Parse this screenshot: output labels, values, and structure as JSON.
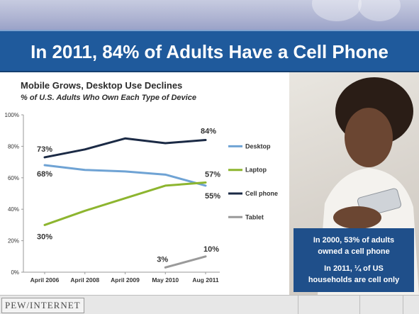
{
  "slide": {
    "title": "In 2011, 84% of Adults Have a Cell Phone",
    "caption_line1": "In 2000, 53% of adults",
    "caption_line2": "owned a cell phone",
    "caption_line3": "In 2011, ¼ of US",
    "caption_line4": "households are cell only",
    "footer_logo": "PEW/INTERNET",
    "colors": {
      "title_bar": "#1f5a9c",
      "caption_box": "#1f4f8a"
    }
  },
  "chart_data": {
    "type": "line",
    "title": "Mobile Grows, Desktop Use Declines",
    "subtitle": "% of U.S. Adults Who Own Each Type of Device",
    "categories": [
      "April 2006",
      "April 2008",
      "April 2009",
      "May 2010",
      "Aug 2011"
    ],
    "y_ticks": [
      "0%",
      "20%",
      "40%",
      "60%",
      "80%",
      "100%"
    ],
    "ylim": [
      0,
      100
    ],
    "grid": false,
    "legend_position": "right",
    "series": [
      {
        "name": "Desktop",
        "color": "#6fa3d4",
        "values": [
          68,
          65,
          64,
          62,
          55
        ]
      },
      {
        "name": "Laptop",
        "color": "#8db52f",
        "values": [
          30,
          39,
          47,
          55,
          57
        ]
      },
      {
        "name": "Cell phone",
        "color": "#1b2a45",
        "values": [
          73,
          78,
          85,
          82,
          84
        ]
      },
      {
        "name": "Tablet",
        "color": "#9a9a9a",
        "values": [
          null,
          null,
          null,
          3,
          10
        ]
      }
    ],
    "data_labels": [
      {
        "text": "73%",
        "series": "Cell phone",
        "index": 0
      },
      {
        "text": "84%",
        "series": "Cell phone",
        "index": 4
      },
      {
        "text": "68%",
        "series": "Desktop",
        "index": 0
      },
      {
        "text": "57%",
        "series": "Laptop",
        "index": 4
      },
      {
        "text": "55%",
        "series": "Desktop",
        "index": 4
      },
      {
        "text": "30%",
        "series": "Laptop",
        "index": 0
      },
      {
        "text": "3%",
        "series": "Tablet",
        "index": 3
      },
      {
        "text": "10%",
        "series": "Tablet",
        "index": 4
      }
    ]
  }
}
